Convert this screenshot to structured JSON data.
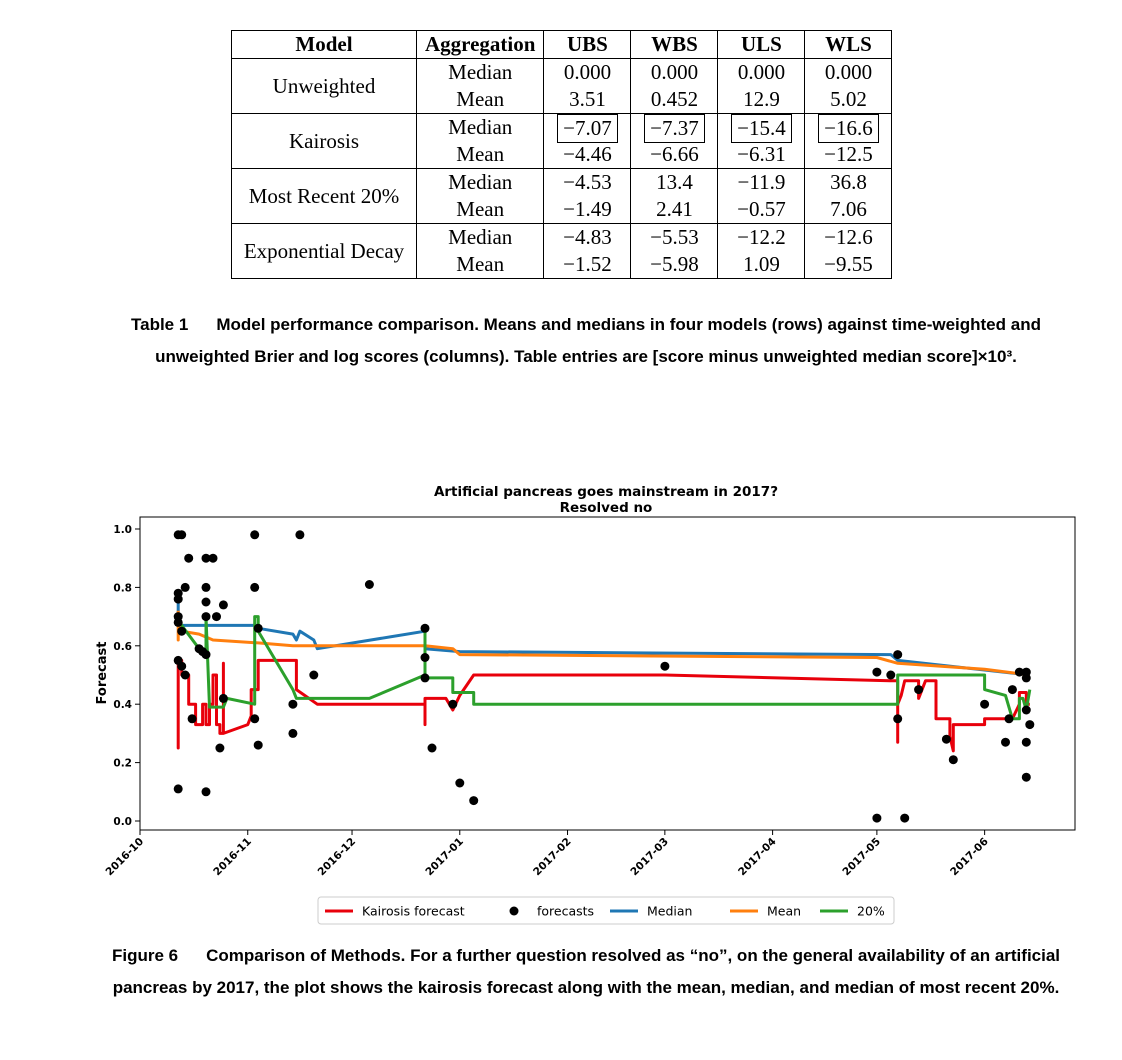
{
  "table": {
    "headers": [
      "Model",
      "Aggregation",
      "UBS",
      "WBS",
      "ULS",
      "WLS"
    ],
    "groups": [
      {
        "model": "Unweighted",
        "rows": [
          {
            "agg": "Median",
            "values": [
              "0.000",
              "0.000",
              "0.000",
              "0.000"
            ],
            "boxed": false
          },
          {
            "agg": "Mean",
            "values": [
              "3.51",
              "0.452",
              "12.9",
              "5.02"
            ],
            "boxed": false
          }
        ]
      },
      {
        "model": "Kairosis",
        "rows": [
          {
            "agg": "Median",
            "values": [
              "−7.07",
              "−7.37",
              "−15.4",
              "−16.6"
            ],
            "boxed": true
          },
          {
            "agg": "Mean",
            "values": [
              "−4.46",
              "−6.66",
              "−6.31",
              "−12.5"
            ],
            "boxed": false
          }
        ]
      },
      {
        "model": "Most Recent 20%",
        "rows": [
          {
            "agg": "Median",
            "values": [
              "−4.53",
              "13.4",
              "−11.9",
              "36.8"
            ],
            "boxed": false
          },
          {
            "agg": "Mean",
            "values": [
              "−1.49",
              "2.41",
              "−0.57",
              "7.06"
            ],
            "boxed": false
          }
        ]
      },
      {
        "model": "Exponential Decay",
        "rows": [
          {
            "agg": "Median",
            "values": [
              "−4.83",
              "−5.53",
              "−12.2",
              "−12.6"
            ],
            "boxed": false
          },
          {
            "agg": "Mean",
            "values": [
              "−1.52",
              "−5.98",
              "1.09",
              "−9.55"
            ],
            "boxed": false
          }
        ]
      }
    ]
  },
  "table_caption": {
    "label": "Table 1",
    "text": "Model performance comparison. Means and medians in four models (rows) against time-weighted and unweighted Brier and log scores (columns). Table entries are [score minus unweighted median score]×10³."
  },
  "figure_caption": {
    "label": "Figure 6",
    "text": "Comparison of Methods. For a further question resolved as “no”, on the general availability of an artificial pancreas by 2017, the plot shows the kairosis forecast along with the mean, median, and median of most recent 20%."
  },
  "chart_data": {
    "type": "line",
    "title": "Artificial pancreas goes mainstream in 2017?",
    "subtitle": "Resolved no",
    "ylabel": "Forecast",
    "xlabel": "",
    "ylim": [
      0.0,
      1.0
    ],
    "xlim": [
      "2016-10-01",
      "2017-06-27"
    ],
    "yticks": [
      0.0,
      0.2,
      0.4,
      0.6,
      0.8,
      1.0
    ],
    "ytick_labels": [
      "0.0",
      "0.2",
      "0.4",
      "0.6",
      "0.8",
      "1.0"
    ],
    "xticks": [
      "2016-10-01",
      "2016-11-01",
      "2016-12-01",
      "2017-01-01",
      "2017-02-01",
      "2017-03-01",
      "2017-04-01",
      "2017-05-01",
      "2017-06-01"
    ],
    "xtick_labels": [
      "2016-10",
      "2016-11",
      "2016-12",
      "2017-01",
      "2017-02",
      "2017-03",
      "2017-04",
      "2017-05",
      "2017-06"
    ],
    "grid": false,
    "legend_position": "bottom-center",
    "legend": [
      {
        "label": "Kairosis forecast",
        "kind": "line",
        "color": "#e8000b"
      },
      {
        "label": "forecasts",
        "kind": "dot",
        "color": "#000000"
      },
      {
        "label": "Median",
        "kind": "line",
        "color": "#1f77b4"
      },
      {
        "label": "Mean",
        "kind": "line",
        "color": "#ff7f0e"
      },
      {
        "label": "20%",
        "kind": "line",
        "color": "#2ca02c"
      }
    ],
    "forecasts": [
      [
        "2016-10-12",
        0.98
      ],
      [
        "2016-10-13",
        0.98
      ],
      [
        "2016-10-15",
        0.9
      ],
      [
        "2016-10-20",
        0.9
      ],
      [
        "2016-10-22",
        0.9
      ],
      [
        "2016-10-12",
        0.78
      ],
      [
        "2016-10-12",
        0.76
      ],
      [
        "2016-10-14",
        0.8
      ],
      [
        "2016-10-20",
        0.8
      ],
      [
        "2016-10-20",
        0.75
      ],
      [
        "2016-10-25",
        0.74
      ],
      [
        "2016-10-20",
        0.7
      ],
      [
        "2016-10-23",
        0.7
      ],
      [
        "2016-10-12",
        0.7
      ],
      [
        "2016-10-12",
        0.68
      ],
      [
        "2016-10-13",
        0.65
      ],
      [
        "2016-10-18",
        0.59
      ],
      [
        "2016-10-19",
        0.58
      ],
      [
        "2016-10-20",
        0.57
      ],
      [
        "2016-10-12",
        0.55
      ],
      [
        "2016-10-13",
        0.53
      ],
      [
        "2016-10-14",
        0.5
      ],
      [
        "2016-10-25",
        0.42
      ],
      [
        "2016-10-16",
        0.35
      ],
      [
        "2016-10-24",
        0.25
      ],
      [
        "2016-10-12",
        0.11
      ],
      [
        "2016-10-20",
        0.1
      ],
      [
        "2016-11-03",
        0.98
      ],
      [
        "2016-11-03",
        0.8
      ],
      [
        "2016-11-03",
        0.35
      ],
      [
        "2016-11-04",
        0.66
      ],
      [
        "2016-11-04",
        0.26
      ],
      [
        "2016-11-16",
        0.98
      ],
      [
        "2016-11-14",
        0.4
      ],
      [
        "2016-11-14",
        0.3
      ],
      [
        "2016-11-20",
        0.5
      ],
      [
        "2016-12-06",
        0.81
      ],
      [
        "2016-12-22",
        0.66
      ],
      [
        "2016-12-22",
        0.56
      ],
      [
        "2016-12-22",
        0.49
      ],
      [
        "2016-12-24",
        0.25
      ],
      [
        "2016-12-30",
        0.4
      ],
      [
        "2017-01-01",
        0.13
      ],
      [
        "2017-01-05",
        0.07
      ],
      [
        "2017-03-01",
        0.53
      ],
      [
        "2017-05-01",
        0.51
      ],
      [
        "2017-05-01",
        0.01
      ],
      [
        "2017-05-05",
        0.5
      ],
      [
        "2017-05-07",
        0.57
      ],
      [
        "2017-05-07",
        0.35
      ],
      [
        "2017-05-09",
        0.01
      ],
      [
        "2017-05-13",
        0.45
      ],
      [
        "2017-05-21",
        0.28
      ],
      [
        "2017-05-23",
        0.21
      ],
      [
        "2017-06-01",
        0.4
      ],
      [
        "2017-06-07",
        0.27
      ],
      [
        "2017-06-08",
        0.35
      ],
      [
        "2017-06-09",
        0.45
      ],
      [
        "2017-06-11",
        0.51
      ],
      [
        "2017-06-13",
        0.51
      ],
      [
        "2017-06-13",
        0.49
      ],
      [
        "2017-06-13",
        0.38
      ],
      [
        "2017-06-13",
        0.27
      ],
      [
        "2017-06-13",
        0.15
      ],
      [
        "2017-06-14",
        0.33
      ]
    ],
    "series": [
      {
        "name": "Kairosis forecast",
        "color": "#e8000b",
        "points": [
          [
            "2016-10-12",
            0.3
          ],
          [
            "2016-10-12",
            0.25
          ],
          [
            "2016-10-12",
            0.55
          ],
          [
            "2016-10-13",
            0.55
          ],
          [
            "2016-10-13",
            0.5
          ],
          [
            "2016-10-15",
            0.5
          ],
          [
            "2016-10-15",
            0.4
          ],
          [
            "2016-10-17",
            0.4
          ],
          [
            "2016-10-17",
            0.33
          ],
          [
            "2016-10-19",
            0.33
          ],
          [
            "2016-10-19",
            0.4
          ],
          [
            "2016-10-20",
            0.4
          ],
          [
            "2016-10-20",
            0.33
          ],
          [
            "2016-10-21",
            0.33
          ],
          [
            "2016-10-21",
            0.4
          ],
          [
            "2016-10-22",
            0.4
          ],
          [
            "2016-10-22",
            0.5
          ],
          [
            "2016-10-23",
            0.5
          ],
          [
            "2016-10-23",
            0.33
          ],
          [
            "2016-10-24",
            0.33
          ],
          [
            "2016-10-24",
            0.3
          ],
          [
            "2016-10-25",
            0.3
          ],
          [
            "2016-10-25",
            0.54
          ],
          [
            "2016-10-25",
            0.3
          ],
          [
            "2016-11-01",
            0.33
          ],
          [
            "2016-11-02",
            0.36
          ],
          [
            "2016-11-02",
            0.45
          ],
          [
            "2016-11-04",
            0.45
          ],
          [
            "2016-11-04",
            0.55
          ],
          [
            "2016-11-15",
            0.55
          ],
          [
            "2016-11-15",
            0.45
          ],
          [
            "2016-11-21",
            0.4
          ],
          [
            "2016-12-22",
            0.4
          ],
          [
            "2016-12-22",
            0.33
          ],
          [
            "2016-12-22",
            0.42
          ],
          [
            "2016-12-28",
            0.42
          ],
          [
            "2016-12-30",
            0.38
          ],
          [
            "2017-01-01",
            0.43
          ],
          [
            "2017-01-05",
            0.5
          ],
          [
            "2017-03-01",
            0.5
          ],
          [
            "2017-05-05",
            0.48
          ],
          [
            "2017-05-07",
            0.48
          ],
          [
            "2017-05-07",
            0.27
          ],
          [
            "2017-05-07",
            0.4
          ],
          [
            "2017-05-08",
            0.43
          ],
          [
            "2017-05-09",
            0.48
          ],
          [
            "2017-05-13",
            0.48
          ],
          [
            "2017-05-13",
            0.42
          ],
          [
            "2017-05-15",
            0.48
          ],
          [
            "2017-05-18",
            0.48
          ],
          [
            "2017-05-18",
            0.35
          ],
          [
            "2017-05-22",
            0.35
          ],
          [
            "2017-05-22",
            0.29
          ],
          [
            "2017-05-23",
            0.24
          ],
          [
            "2017-05-23",
            0.33
          ],
          [
            "2017-06-01",
            0.33
          ],
          [
            "2017-06-01",
            0.35
          ],
          [
            "2017-06-09",
            0.35
          ],
          [
            "2017-06-11",
            0.4
          ],
          [
            "2017-06-11",
            0.44
          ],
          [
            "2017-06-13",
            0.44
          ],
          [
            "2017-06-13",
            0.4
          ],
          [
            "2017-06-14",
            0.4
          ]
        ]
      },
      {
        "name": "Median",
        "color": "#1f77b4",
        "points": [
          [
            "2016-10-12",
            0.75
          ],
          [
            "2016-10-12",
            0.7
          ],
          [
            "2016-10-13",
            0.67
          ],
          [
            "2016-11-01",
            0.67
          ],
          [
            "2016-11-04",
            0.67
          ],
          [
            "2016-11-04",
            0.66
          ],
          [
            "2016-11-14",
            0.64
          ],
          [
            "2016-11-15",
            0.62
          ],
          [
            "2016-11-16",
            0.65
          ],
          [
            "2016-11-20",
            0.62
          ],
          [
            "2016-11-21",
            0.59
          ],
          [
            "2016-12-22",
            0.65
          ],
          [
            "2016-12-22",
            0.59
          ],
          [
            "2017-01-01",
            0.58
          ],
          [
            "2017-05-05",
            0.57
          ],
          [
            "2017-05-07",
            0.55
          ],
          [
            "2017-06-14",
            0.5
          ]
        ]
      },
      {
        "name": "Mean",
        "color": "#ff7f0e",
        "points": [
          [
            "2016-10-12",
            0.72
          ],
          [
            "2016-10-12",
            0.62
          ],
          [
            "2016-10-12",
            0.68
          ],
          [
            "2016-10-13",
            0.65
          ],
          [
            "2016-10-18",
            0.64
          ],
          [
            "2016-10-22",
            0.62
          ],
          [
            "2016-11-04",
            0.61
          ],
          [
            "2016-11-14",
            0.6
          ],
          [
            "2016-12-22",
            0.6
          ],
          [
            "2016-12-30",
            0.59
          ],
          [
            "2017-01-01",
            0.57
          ],
          [
            "2017-05-01",
            0.56
          ],
          [
            "2017-05-07",
            0.54
          ],
          [
            "2017-06-01",
            0.52
          ],
          [
            "2017-06-14",
            0.5
          ]
        ]
      },
      {
        "name": "20%",
        "color": "#2ca02c",
        "points": [
          [
            "2016-10-12",
            0.7
          ],
          [
            "2016-10-13",
            0.67
          ],
          [
            "2016-10-18",
            0.59
          ],
          [
            "2016-10-20",
            0.58
          ],
          [
            "2016-10-20",
            0.7
          ],
          [
            "2016-10-21",
            0.39
          ],
          [
            "2016-10-25",
            0.39
          ],
          [
            "2016-10-26",
            0.42
          ],
          [
            "2016-11-03",
            0.4
          ],
          [
            "2016-11-03",
            0.7
          ],
          [
            "2016-11-04",
            0.7
          ],
          [
            "2016-11-04",
            0.65
          ],
          [
            "2016-11-14",
            0.45
          ],
          [
            "2016-11-15",
            0.42
          ],
          [
            "2016-12-06",
            0.42
          ],
          [
            "2016-12-22",
            0.5
          ],
          [
            "2016-12-22",
            0.65
          ],
          [
            "2016-12-22",
            0.49
          ],
          [
            "2016-12-30",
            0.49
          ],
          [
            "2016-12-30",
            0.44
          ],
          [
            "2017-01-05",
            0.44
          ],
          [
            "2017-01-05",
            0.4
          ],
          [
            "2017-05-07",
            0.4
          ],
          [
            "2017-05-07",
            0.5
          ],
          [
            "2017-06-01",
            0.5
          ],
          [
            "2017-06-01",
            0.45
          ],
          [
            "2017-06-07",
            0.43
          ],
          [
            "2017-06-09",
            0.35
          ],
          [
            "2017-06-11",
            0.35
          ],
          [
            "2017-06-11",
            0.42
          ],
          [
            "2017-06-12",
            0.42
          ],
          [
            "2017-06-13",
            0.38
          ],
          [
            "2017-06-14",
            0.45
          ]
        ]
      }
    ]
  }
}
